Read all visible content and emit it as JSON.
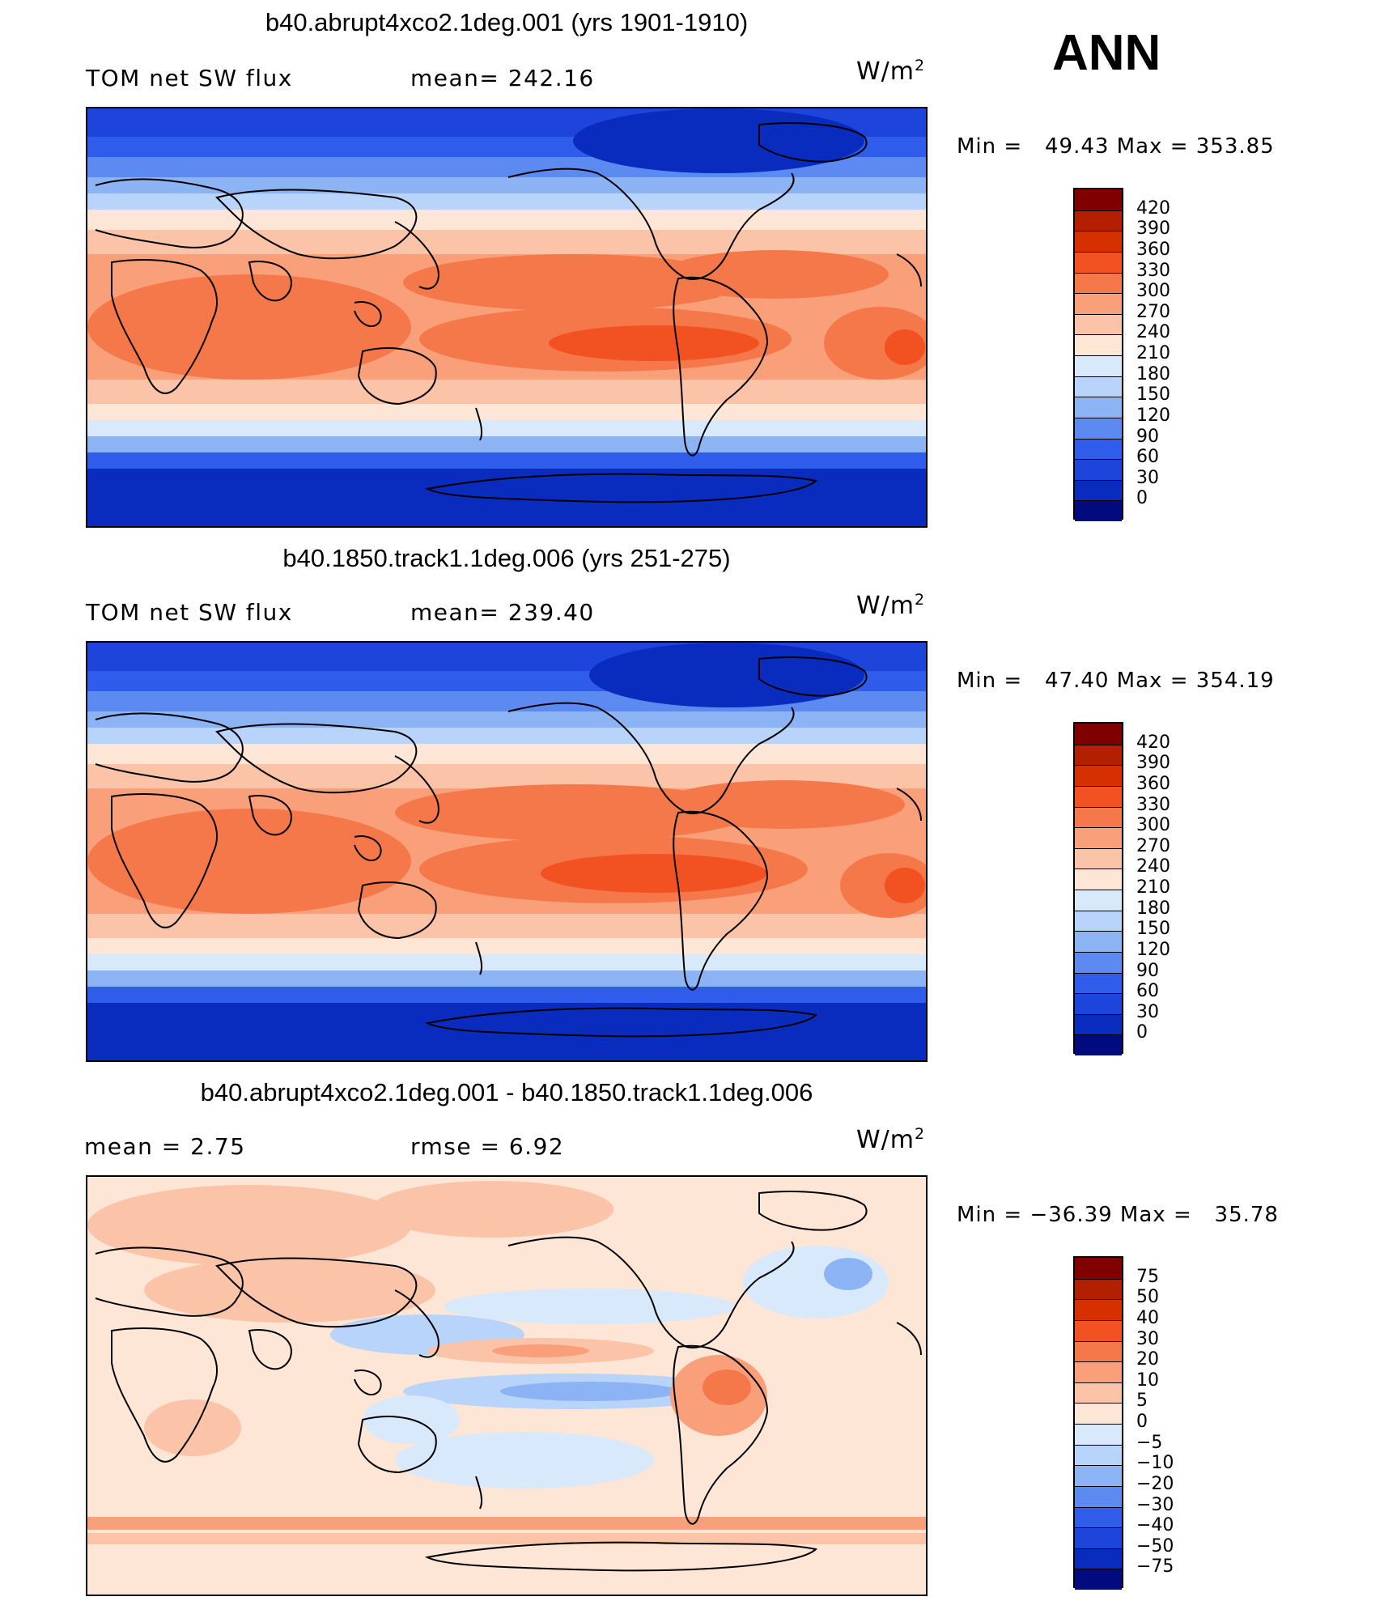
{
  "season": "ANN",
  "panels": [
    {
      "title": "b40.abrupt4xco2.1deg.001 (yrs 1901-1910)",
      "left_label": "TOM net SW flux",
      "center_label": "mean= 242.16",
      "units_base": "W/m",
      "units_exp": "2",
      "minmax": "Min =   49.43 Max = 353.85",
      "scale": "absolute"
    },
    {
      "title": "b40.1850.track1.1deg.006 (yrs 251-275)",
      "left_label": "TOM net SW flux",
      "center_label": "mean= 239.40",
      "units_base": "W/m",
      "units_exp": "2",
      "minmax": "Min =   47.40 Max = 354.19",
      "scale": "absolute"
    },
    {
      "title": "b40.abrupt4xco2.1deg.001 - b40.1850.track1.1deg.006",
      "left_label": "mean =     2.75",
      "center_label": "rmse =     6.92",
      "units_base": "W/m",
      "units_exp": "2",
      "minmax": "Min = −36.39 Max =   35.78",
      "scale": "difference"
    }
  ],
  "colorbars": {
    "absolute": {
      "labels": [
        "420",
        "390",
        "360",
        "330",
        "300",
        "270",
        "240",
        "210",
        "180",
        "150",
        "120",
        "90",
        "60",
        "30",
        "0"
      ],
      "colors": [
        "#800000",
        "#b22000",
        "#d63000",
        "#f25222",
        "#f5784a",
        "#f9a07a",
        "#fbc4a8",
        "#fde6d6",
        "#d8e9fb",
        "#b8d4fa",
        "#8cb4f5",
        "#5c8af0",
        "#2f5cea",
        "#1d45dc",
        "#0a2cbe",
        "#020a80"
      ]
    },
    "difference": {
      "labels": [
        "75",
        "50",
        "40",
        "30",
        "20",
        "10",
        "5",
        "0",
        "−5",
        "−10",
        "−20",
        "−30",
        "−40",
        "−50",
        "−75"
      ],
      "colors": [
        "#800000",
        "#b22000",
        "#d63000",
        "#f25222",
        "#f5784a",
        "#f9a07a",
        "#fbc4a8",
        "#fde6d6",
        "#d8e9fb",
        "#b8d4fa",
        "#8cb4f5",
        "#5c8af0",
        "#2f5cea",
        "#1d45dc",
        "#0a2cbe",
        "#020a80"
      ]
    }
  }
}
